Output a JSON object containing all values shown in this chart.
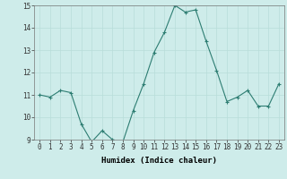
{
  "x": [
    0,
    1,
    2,
    3,
    4,
    5,
    6,
    7,
    8,
    9,
    10,
    11,
    12,
    13,
    14,
    15,
    16,
    17,
    18,
    19,
    20,
    21,
    22,
    23
  ],
  "y": [
    11.0,
    10.9,
    11.2,
    11.1,
    9.7,
    8.9,
    9.4,
    9.0,
    8.9,
    10.3,
    11.5,
    12.9,
    13.8,
    15.0,
    14.7,
    14.8,
    13.4,
    12.1,
    10.7,
    10.9,
    11.2,
    10.5,
    10.5,
    11.5
  ],
  "xlabel": "Humidex (Indice chaleur)",
  "ylim": [
    9,
    15
  ],
  "xlim": [
    -0.5,
    23.5
  ],
  "yticks": [
    9,
    10,
    11,
    12,
    13,
    14,
    15
  ],
  "xticks": [
    0,
    1,
    2,
    3,
    4,
    5,
    6,
    7,
    8,
    9,
    10,
    11,
    12,
    13,
    14,
    15,
    16,
    17,
    18,
    19,
    20,
    21,
    22,
    23
  ],
  "line_color": "#2d7d72",
  "marker": "+",
  "bg_color": "#ceecea",
  "grid_color": "#b8ddd9",
  "tick_label_fontsize": 5.5,
  "xlabel_fontsize": 6.5
}
